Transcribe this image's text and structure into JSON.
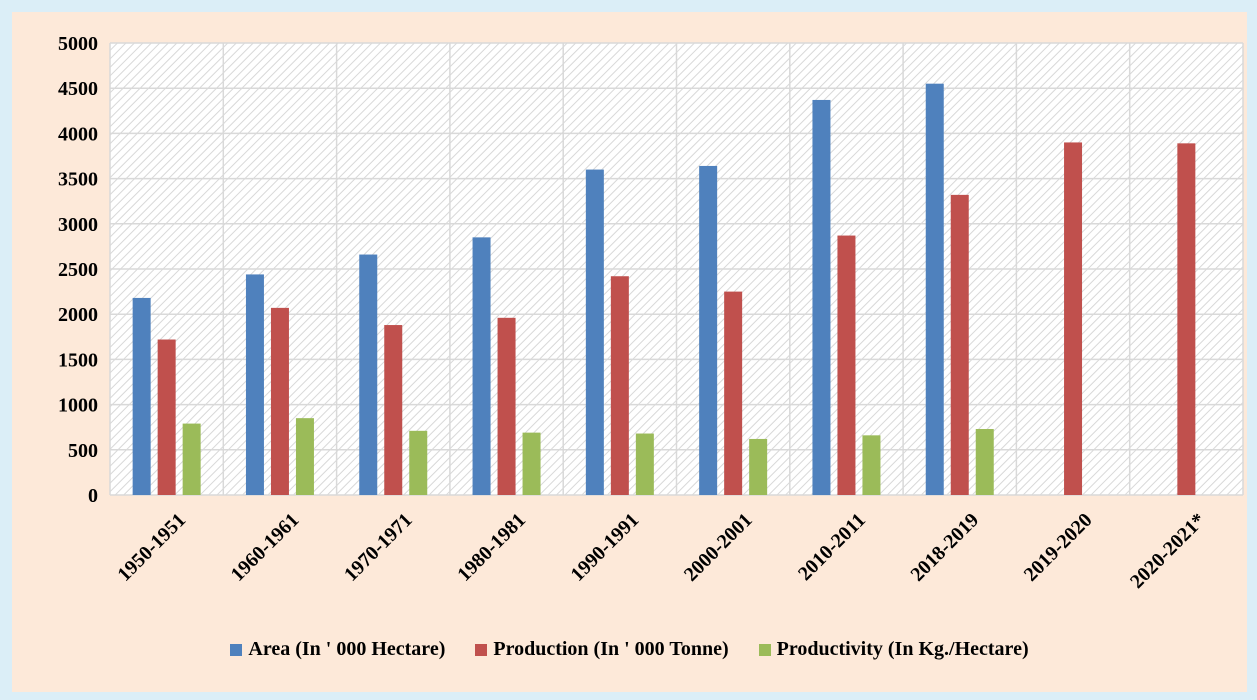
{
  "chart_data": {
    "type": "bar",
    "title": "",
    "xlabel": "",
    "ylabel": "",
    "ylim": [
      0,
      5000
    ],
    "yticks": [
      0,
      500,
      1000,
      1500,
      2000,
      2500,
      3000,
      3500,
      4000,
      4500,
      5000
    ],
    "grid": true,
    "legend_position": "bottom",
    "categories": [
      "1950-1951",
      "1960-1961",
      "1970-1971",
      "1980-1981",
      "1990-1991",
      "2000-2001",
      "2010-2011",
      "2018-2019",
      "2019-2020",
      "2020-2021*"
    ],
    "series": [
      {
        "name": "Area (In ' 000 Hectare)",
        "color": "#4f81bd",
        "values": [
          2180,
          2440,
          2660,
          2850,
          3600,
          3640,
          4370,
          4550,
          null,
          null
        ]
      },
      {
        "name": "Production (In ' 000 Tonne)",
        "color": "#c0504d",
        "values": [
          1720,
          2070,
          1880,
          1960,
          2420,
          2250,
          2870,
          3320,
          3900,
          3890
        ]
      },
      {
        "name": "Productivity (In Kg./Hectare)",
        "color": "#9bbb59",
        "values": [
          790,
          850,
          710,
          690,
          680,
          620,
          660,
          730,
          null,
          null
        ]
      }
    ]
  }
}
